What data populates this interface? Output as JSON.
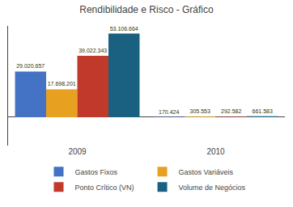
{
  "chart_data": {
    "type": "bar",
    "title": "Rendibilidade e Risco - Gráfico",
    "categories": [
      "2009",
      "2010"
    ],
    "series": [
      {
        "name": "Gastos Fixos",
        "color": "#4472c4",
        "values": [
          29020657,
          170424
        ],
        "value_labels": [
          "29.020.657",
          "170.424"
        ]
      },
      {
        "name": "Gastos Variáveis",
        "color": "#e8a020",
        "values": [
          17698201,
          305553
        ],
        "value_labels": [
          "17.698.201",
          "305.553"
        ]
      },
      {
        "name": "Ponto Crítico (VN)",
        "color": "#c0392b",
        "values": [
          39022343,
          292582
        ],
        "value_labels": [
          "39.022.343",
          "292.582"
        ]
      },
      {
        "name": "Volume de Negócios",
        "color": "#1a6080",
        "values": [
          53106664,
          661583
        ],
        "value_labels": [
          "53.106.664",
          "661.583"
        ]
      }
    ],
    "ylim": [
      -18000000,
      58000000
    ],
    "grid": false,
    "legend": "bottom",
    "data_labels": true,
    "tick_labels": "x"
  }
}
